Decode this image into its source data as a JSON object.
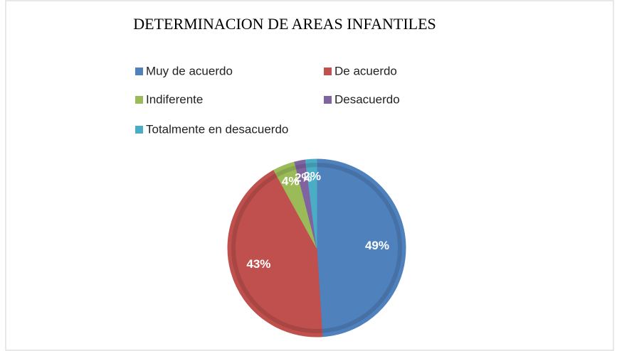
{
  "chart_data": {
    "type": "pie",
    "title": "DETERMINACION DE AREAS INFANTILES",
    "categories": [
      "Muy de acuerdo",
      "De acuerdo",
      "Indiferente",
      "Desacuerdo",
      "Totalmente en desacuerdo"
    ],
    "values": [
      49,
      43,
      4,
      2,
      2
    ],
    "value_labels": [
      "49%",
      "43%",
      "4%",
      "2%",
      "2%"
    ],
    "colors": [
      "#4f81bd",
      "#c0504d",
      "#9bbb59",
      "#8064a2",
      "#4bacc6"
    ]
  }
}
